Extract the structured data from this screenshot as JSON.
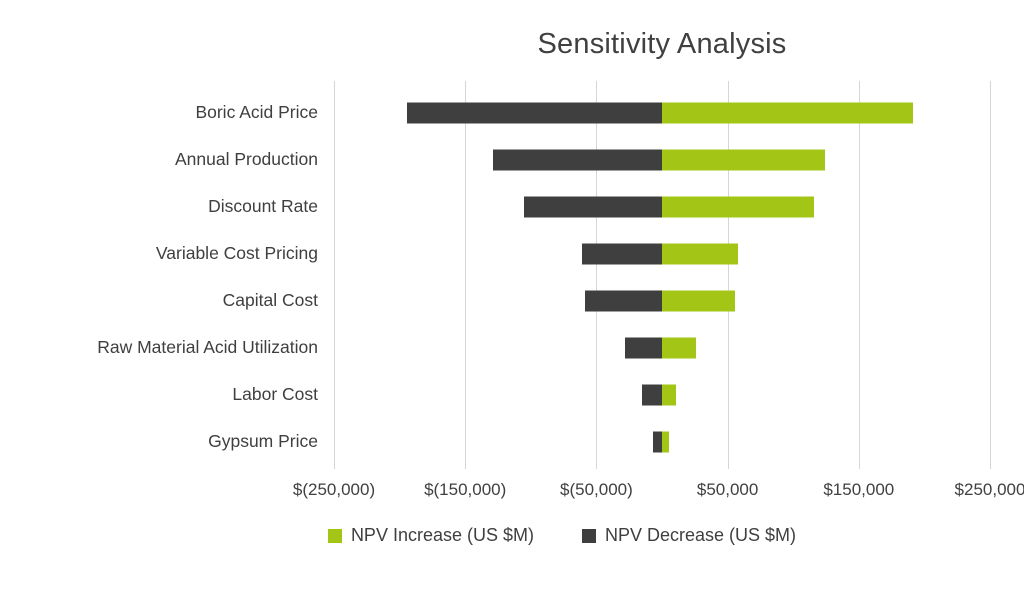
{
  "chart_data": {
    "type": "bar",
    "orientation": "horizontal",
    "subtype": "tornado",
    "title": "Sensitivity Analysis",
    "categories": [
      "Boric Acid Price",
      "Annual Production",
      "Discount Rate",
      "Variable Cost Pricing",
      "Capital Cost",
      "Raw Material Acid Utilization",
      "Labor Cost",
      "Gypsum Price"
    ],
    "series": [
      {
        "name": "NPV Increase (US $M)",
        "color": "#a2c516",
        "values": [
          191000,
          124000,
          116000,
          58000,
          56000,
          26000,
          11000,
          5000
        ]
      },
      {
        "name": "NPV Decrease (US $M)",
        "color": "#3f3f3f",
        "values": [
          -194000,
          -129000,
          -105000,
          -61000,
          -59000,
          -28000,
          -15000,
          -7000
        ]
      }
    ],
    "xlim": [
      -250000,
      250000
    ],
    "x_ticks": [
      {
        "value": -250000,
        "label": "$(250,000)"
      },
      {
        "value": -150000,
        "label": "$(150,000)"
      },
      {
        "value": -50000,
        "label": "$(50,000)"
      },
      {
        "value": 50000,
        "label": "$50,000"
      },
      {
        "value": 150000,
        "label": "$150,000"
      },
      {
        "value": 250000,
        "label": "$250,000"
      }
    ],
    "grid": "vertical",
    "legend_position": "bottom",
    "gridline_color": "#d6d6d6",
    "background": "#ffffff"
  }
}
